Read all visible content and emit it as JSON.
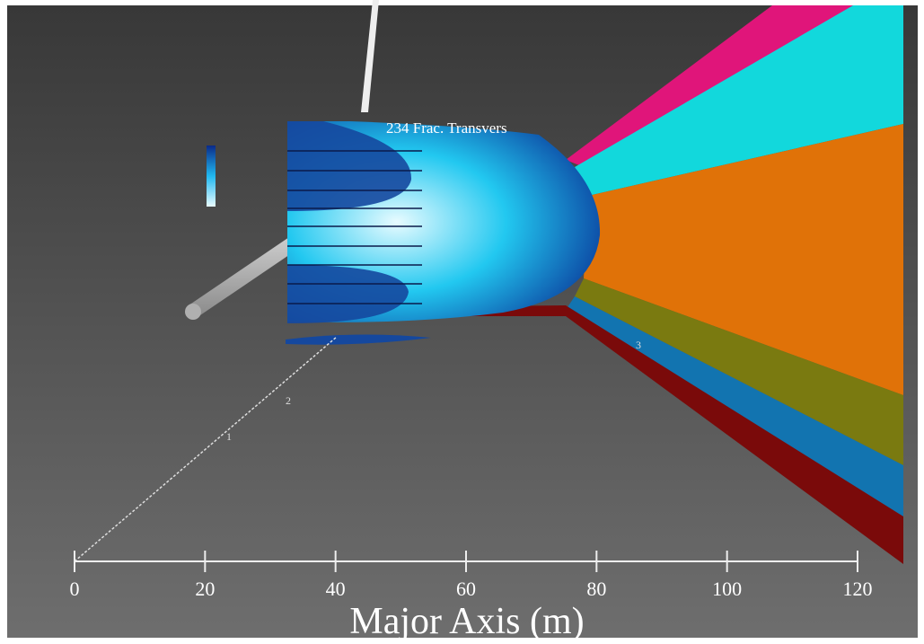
{
  "caption": "234 Frac. Transvers",
  "depth_axis": {
    "ticks": [
      "1",
      "2",
      "3"
    ]
  },
  "axis": {
    "title": "Major Axis (m)",
    "ticks": [
      "0",
      "20",
      "40",
      "60",
      "80",
      "100",
      "120"
    ]
  }
}
